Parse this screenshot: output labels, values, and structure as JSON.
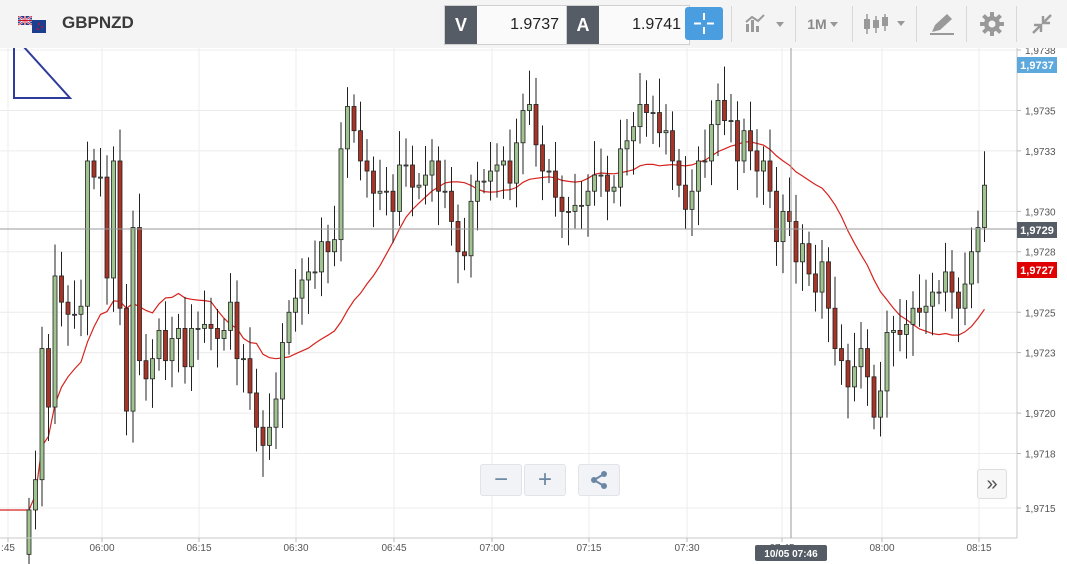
{
  "header": {
    "symbol": "GBPNZD",
    "sell": {
      "label": "V",
      "value": "1.9737"
    },
    "buy": {
      "label": "A",
      "value": "1.9741"
    },
    "timeframe": "1M",
    "flag_icon": "uk-nz-flag-icon",
    "crosshair_icon": "crosshair-icon",
    "chart_type_icon": "line-chart-icon",
    "candle_icon": "candlestick-icon",
    "draw_icon": "pencil-icon",
    "settings_icon": "gear-icon",
    "collapse_icon": "collapse-icon"
  },
  "controls": {
    "zoom_out": "−",
    "zoom_in": "+",
    "share_icon": "share-icon",
    "scroll_end": "»"
  },
  "crosshair": {
    "time_label": "10/05 07:46",
    "price_label": "1,9729"
  },
  "price_labels": {
    "last": "1,9737",
    "marker": "1,9727"
  },
  "colors": {
    "up": "#9fc490",
    "down": "#a83327",
    "ma": "#d6231f",
    "accent": "#4a9ee0",
    "last_price": "#5da8dc",
    "marker": "#e00000"
  },
  "chart_data": {
    "type": "candlestick",
    "x_ticks": [
      ":45",
      "06:00",
      "06:15",
      "06:30",
      "06:45",
      "07:00",
      "07:15",
      "07:30",
      "07:45",
      "08:00",
      "08:15"
    ],
    "y_ticks": [
      "1,9715",
      "1,9718",
      "1,9720",
      "1,9723",
      "1,9725",
      "1,9728",
      "1,9730",
      "1,9733",
      "1,9735",
      "1,9738"
    ],
    "y_range": [
      1.97138,
      1.9738
    ],
    "candles_close": [
      1.97152,
      1.97167,
      1.97232,
      1.97203,
      1.97268,
      1.97255,
      1.97249,
      1.97249,
      1.97253,
      1.97325,
      1.97317,
      1.97317,
      1.97267,
      1.97325,
      1.97252,
      1.97201,
      1.97292,
      1.97226,
      1.97217,
      1.97227,
      1.97241,
      1.97226,
      1.97237,
      1.97242,
      1.97223,
      1.97242,
      1.97242,
      1.97244,
      1.97242,
      1.97237,
      1.97241,
      1.97255,
      1.97227,
      1.97227,
      1.9721,
      1.97193,
      1.97184,
      1.97193,
      1.97207,
      1.97235,
      1.9725,
      1.97257,
      1.97266,
      1.9727,
      1.9727,
      1.97285,
      1.9728,
      1.97286,
      1.97331,
      1.97352,
      1.9734,
      1.97325,
      1.9732,
      1.97309,
      1.9731,
      1.9731,
      1.973,
      1.97323,
      1.97323,
      1.97312,
      1.97313,
      1.97318,
      1.97325,
      1.9731,
      1.9731,
      1.97295,
      1.9728,
      1.97278,
      1.97305,
      1.97315,
      1.97315,
      1.9732,
      1.97323,
      1.97325,
      1.97314,
      1.97334,
      1.9735,
      1.97353,
      1.97333,
      1.9732,
      1.9732,
      1.97307,
      1.973,
      1.973,
      1.97303,
      1.97303,
      1.9731,
      1.97318,
      1.97318,
      1.9731,
      1.97312,
      1.97331,
      1.97335,
      1.97342,
      1.97353,
      1.97349,
      1.97349,
      1.97339,
      1.9734,
      1.97325,
      1.97313,
      1.97301,
      1.9731,
      1.97325,
      1.97325,
      1.97343,
      1.97355,
      1.97345,
      1.97345,
      1.97325,
      1.9734,
      1.9733,
      1.9732,
      1.97325,
      1.9731,
      1.97285,
      1.973,
      1.97295,
      1.97275,
      1.97284,
      1.97269,
      1.9726,
      1.97275,
      1.97252,
      1.97232,
      1.97226,
      1.97213,
      1.97223,
      1.97232,
      1.97218,
      1.97198,
      1.97211,
      1.9724,
      1.97241,
      1.97239,
      1.97244,
      1.97252,
      1.9725,
      1.97253,
      1.9726,
      1.9726,
      1.9727,
      1.9726,
      1.97252,
      1.97264,
      1.9728,
      1.97292,
      1.97313
    ],
    "moving_average": "red line (period not shown)"
  }
}
